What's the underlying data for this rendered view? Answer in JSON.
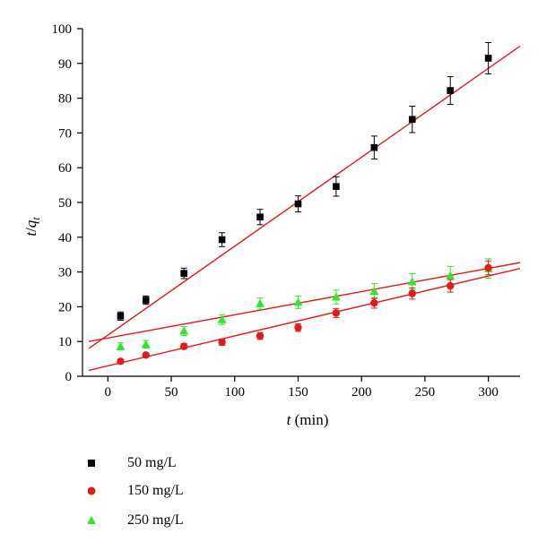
{
  "chart_data": {
    "type": "scatter",
    "xlabel": "t (min)",
    "ylabel": "t/q_t",
    "xlim": [
      -20,
      325
    ],
    "ylim": [
      0,
      100
    ],
    "xticks": [
      0,
      50,
      100,
      150,
      200,
      250,
      300
    ],
    "yticks": [
      0,
      10,
      20,
      30,
      40,
      50,
      60,
      70,
      80,
      90,
      100
    ],
    "grid": false,
    "legend_position": "bottom-left",
    "x": [
      10,
      30,
      60,
      90,
      120,
      150,
      180,
      210,
      240,
      270,
      300
    ],
    "series": [
      {
        "name": "50 mg/L",
        "marker": "square",
        "color": "#000000",
        "values": [
          17.3,
          21.9,
          29.6,
          39.3,
          45.8,
          49.6,
          54.6,
          65.8,
          73.9,
          82.2,
          91.5
        ],
        "errors": [
          1.2,
          1.2,
          1.5,
          2.0,
          2.2,
          2.3,
          2.8,
          3.3,
          3.8,
          4.0,
          4.5
        ],
        "fit": {
          "x": [
            -15,
            325
          ],
          "y": [
            8.0,
            95.0
          ],
          "color": "#e31a1c"
        }
      },
      {
        "name": "150 mg/L",
        "marker": "circle",
        "color": "#e31a1c",
        "values": [
          4.3,
          6.1,
          8.6,
          9.8,
          11.6,
          14.0,
          18.2,
          21.1,
          23.8,
          26.0,
          31.2
        ],
        "errors": [
          0.5,
          0.6,
          0.8,
          0.9,
          1.0,
          1.1,
          1.3,
          1.5,
          1.6,
          1.8,
          2.0
        ],
        "fit": {
          "x": [
            -15,
            325
          ],
          "y": [
            1.7,
            31.0
          ],
          "color": "#e31a1c"
        }
      },
      {
        "name": "250 mg/L",
        "marker": "triangle",
        "color": "#2ee82e",
        "values": [
          8.6,
          9.2,
          13.0,
          16.3,
          20.9,
          21.3,
          22.8,
          24.5,
          27.2,
          29.0,
          31.0
        ],
        "errors": [
          1.0,
          1.1,
          1.3,
          1.4,
          1.6,
          1.8,
          2.0,
          2.2,
          2.3,
          2.6,
          2.8
        ],
        "fit": {
          "x": [
            -15,
            325
          ],
          "y": [
            10.0,
            32.7
          ],
          "color": "#e31a1c"
        }
      }
    ]
  }
}
